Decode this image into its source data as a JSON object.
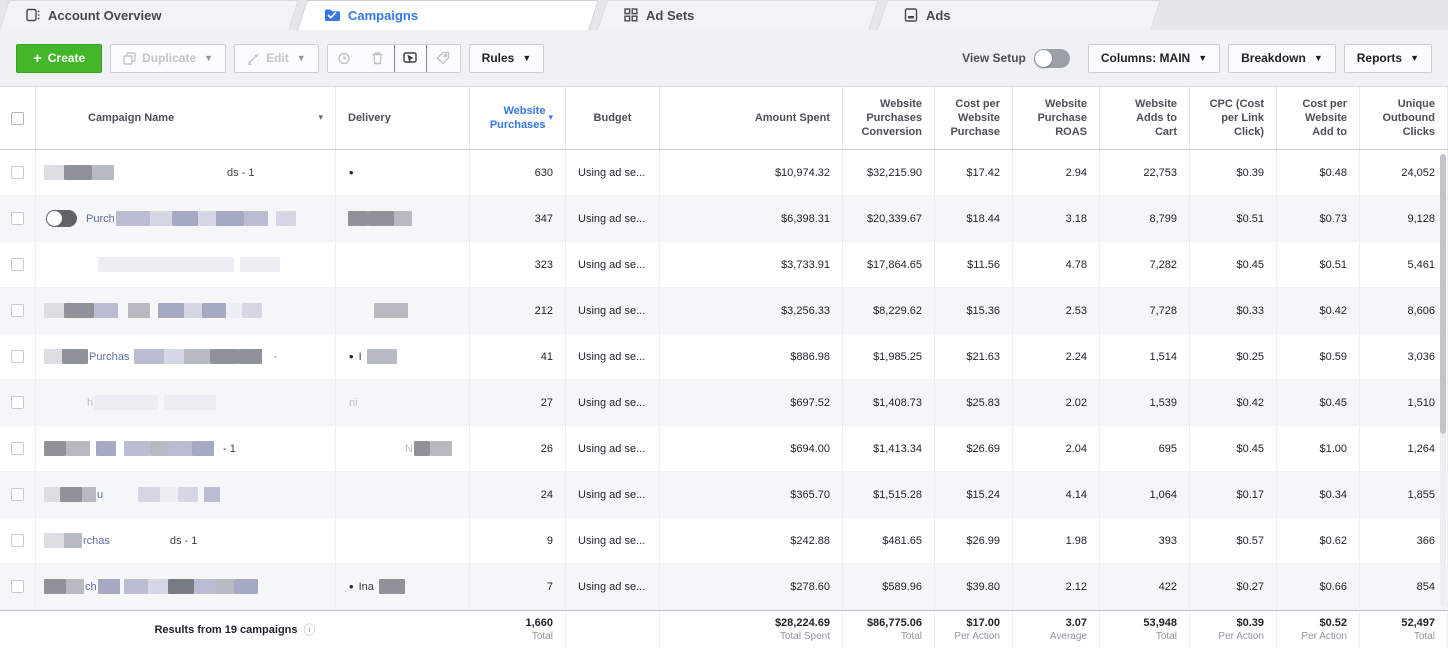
{
  "tabs": [
    {
      "label": "Account Overview",
      "active": false
    },
    {
      "label": "Campaigns",
      "active": true
    },
    {
      "label": "Ad Sets",
      "active": false
    },
    {
      "label": "Ads",
      "active": false
    }
  ],
  "toolbar": {
    "create": "Create",
    "duplicate": "Duplicate",
    "edit": "Edit",
    "rules": "Rules",
    "view_setup": "View Setup",
    "columns": "Columns: MAIN",
    "breakdown": "Breakdown",
    "reports": "Reports"
  },
  "colors": {
    "accent_blue": "#3578e5",
    "create_green": "#42b72a"
  },
  "redact_palette": [
    "#dcdde1",
    "#8f9299",
    "#b7bac0",
    "#b9bcd2",
    "#a5a9c4",
    "#d5d7e4",
    "#edeef3",
    "#777b82"
  ],
  "table": {
    "columns": [
      {
        "key": "name",
        "label": "Campaign Name",
        "align": "left"
      },
      {
        "key": "delivery",
        "label": "Delivery",
        "align": "left"
      },
      {
        "key": "purchases",
        "label": "Website Purchases",
        "align": "right",
        "sorted": true
      },
      {
        "key": "budget",
        "label": "Budget",
        "align": "center"
      },
      {
        "key": "spent",
        "label": "Amount Spent",
        "align": "right"
      },
      {
        "key": "conversion",
        "label": "Website Purchases Conversion",
        "align": "right"
      },
      {
        "key": "cpp",
        "label": "Cost per Website Purchase",
        "align": "right"
      },
      {
        "key": "roas",
        "label": "Website Purchase ROAS",
        "align": "right"
      },
      {
        "key": "atc",
        "label": "Website Adds to Cart",
        "align": "right"
      },
      {
        "key": "cpc",
        "label": "CPC (Cost per Link Click)",
        "align": "right"
      },
      {
        "key": "cpwa",
        "label": "Cost per Website Add to",
        "align": "right"
      },
      {
        "key": "uoc",
        "label": "Unique Outbound Clicks",
        "align": "right"
      }
    ],
    "value_keys": [
      "purchases",
      "budget",
      "spent",
      "conversion",
      "cpp",
      "roas",
      "atc",
      "cpc",
      "cpwa",
      "uoc"
    ],
    "rows": [
      {
        "toggle": false,
        "name": [
          [
            "g",
            2
          ],
          [
            "b",
            20,
            0
          ],
          [
            "b",
            28,
            1
          ],
          [
            "b",
            22,
            2
          ],
          [
            "g",
            112
          ],
          [
            "t",
            "ds - 1",
            "dark"
          ]
        ],
        "delivery": [
          [
            "t",
            "•",
            "dot"
          ]
        ],
        "purchases": "630",
        "budget": "Using ad se...",
        "spent": "$10,974.32",
        "conversion": "$32,215.90",
        "cpp": "$17.42",
        "roas": "2.94",
        "atc": "22,753",
        "cpc": "$0.39",
        "cpwa": "$0.48",
        "uoc": "24,052"
      },
      {
        "toggle": true,
        "name": [
          [
            "t",
            "Purch",
            "blue"
          ],
          [
            "b",
            34,
            3
          ],
          [
            "b",
            22,
            5
          ],
          [
            "b",
            26,
            4
          ],
          [
            "b",
            18,
            5
          ],
          [
            "b",
            28,
            4
          ],
          [
            "b",
            24,
            3
          ],
          [
            "g",
            8
          ],
          [
            "b",
            20,
            5
          ]
        ],
        "delivery": [
          [
            "b",
            20,
            1
          ],
          [
            "b",
            26,
            1
          ],
          [
            "b",
            18,
            2
          ]
        ],
        "purchases": "347",
        "budget": "Using ad se...",
        "spent": "$6,398.31",
        "conversion": "$20,339.67",
        "cpp": "$18.44",
        "roas": "3.18",
        "atc": "8,799",
        "cpc": "$0.51",
        "cpwa": "$0.73",
        "uoc": "9,128"
      },
      {
        "toggle": false,
        "name": [
          [
            "g",
            56
          ],
          [
            "b",
            72,
            6
          ],
          [
            "b",
            64,
            6
          ],
          [
            "g",
            6
          ],
          [
            "b",
            40,
            6
          ]
        ],
        "delivery": [],
        "purchases": "323",
        "budget": "Using ad se...",
        "spent": "$3,733.91",
        "conversion": "$17,864.65",
        "cpp": "$11.56",
        "roas": "4.78",
        "atc": "7,282",
        "cpc": "$0.45",
        "cpwa": "$0.51",
        "uoc": "5,461"
      },
      {
        "toggle": false,
        "name": [
          [
            "g",
            2
          ],
          [
            "b",
            20,
            0
          ],
          [
            "b",
            30,
            1
          ],
          [
            "b",
            24,
            3
          ],
          [
            "g",
            10
          ],
          [
            "b",
            22,
            2
          ],
          [
            "g",
            8
          ],
          [
            "b",
            26,
            4
          ],
          [
            "b",
            18,
            5
          ],
          [
            "b",
            24,
            4
          ],
          [
            "b",
            16,
            6
          ],
          [
            "b",
            20,
            5
          ]
        ],
        "delivery": [
          [
            "g",
            26
          ],
          [
            "b",
            34,
            2
          ]
        ],
        "purchases": "212",
        "budget": "Using ad se...",
        "spent": "$3,256.33",
        "conversion": "$8,229.62",
        "cpp": "$15.36",
        "roas": "2.53",
        "atc": "7,728",
        "cpc": "$0.33",
        "cpwa": "$0.42",
        "uoc": "8,606"
      },
      {
        "toggle": false,
        "name": [
          [
            "g",
            2
          ],
          [
            "b",
            18,
            0
          ],
          [
            "b",
            26,
            1
          ],
          [
            "t",
            "Purchas",
            "blue"
          ],
          [
            "g",
            4
          ],
          [
            "b",
            30,
            3
          ],
          [
            "b",
            20,
            5
          ],
          [
            "b",
            26,
            2
          ],
          [
            "b",
            28,
            1
          ],
          [
            "b",
            24,
            1
          ],
          [
            "g",
            10
          ],
          [
            "t",
            "·",
            "dark"
          ]
        ],
        "delivery": [
          [
            "t",
            "•",
            "dot"
          ],
          [
            "t",
            "I",
            "dark"
          ],
          [
            "g",
            4
          ],
          [
            "b",
            30,
            2
          ]
        ],
        "purchases": "41",
        "budget": "Using ad se...",
        "spent": "$886.98",
        "conversion": "$1,985.25",
        "cpp": "$21.63",
        "roas": "2.24",
        "atc": "1,514",
        "cpc": "$0.25",
        "cpwa": "$0.59",
        "uoc": "3,036"
      },
      {
        "toggle": false,
        "name": [
          [
            "g",
            44
          ],
          [
            "t",
            "h",
            "faint"
          ],
          [
            "b",
            64,
            6
          ],
          [
            "g",
            6
          ],
          [
            "b",
            52,
            6
          ]
        ],
        "delivery": [
          [
            "t",
            "ni",
            "faint"
          ]
        ],
        "purchases": "27",
        "budget": "Using ad se...",
        "spent": "$697.52",
        "conversion": "$1,408.73",
        "cpp": "$25.83",
        "roas": "2.02",
        "atc": "1,539",
        "cpc": "$0.42",
        "cpwa": "$0.45",
        "uoc": "1,510"
      },
      {
        "toggle": false,
        "name": [
          [
            "g",
            2
          ],
          [
            "b",
            22,
            1
          ],
          [
            "b",
            24,
            2
          ],
          [
            "g",
            6
          ],
          [
            "b",
            20,
            4
          ],
          [
            "g",
            8
          ],
          [
            "b",
            26,
            3
          ],
          [
            "b",
            18,
            2
          ],
          [
            "b",
            24,
            3
          ],
          [
            "b",
            22,
            4
          ],
          [
            "g",
            8
          ],
          [
            "t",
            "- 1",
            "dark"
          ]
        ],
        "delivery": [
          [
            "g",
            56
          ],
          [
            "t",
            "N",
            "faint"
          ],
          [
            "b",
            16,
            1
          ],
          [
            "b",
            22,
            2
          ]
        ],
        "purchases": "26",
        "budget": "Using ad se...",
        "spent": "$694.00",
        "conversion": "$1,413.34",
        "cpp": "$26.69",
        "roas": "2.04",
        "atc": "695",
        "cpc": "$0.45",
        "cpwa": "$1.00",
        "uoc": "1,264"
      },
      {
        "toggle": false,
        "name": [
          [
            "g",
            2
          ],
          [
            "b",
            16,
            0
          ],
          [
            "b",
            22,
            1
          ],
          [
            "b",
            14,
            2
          ],
          [
            "t",
            "u",
            "blue"
          ],
          [
            "g",
            34
          ],
          [
            "b",
            22,
            5
          ],
          [
            "b",
            18,
            6
          ],
          [
            "b",
            20,
            5
          ],
          [
            "g",
            6
          ],
          [
            "b",
            16,
            3
          ]
        ],
        "delivery": [],
        "purchases": "24",
        "budget": "Using ad se...",
        "spent": "$365.70",
        "conversion": "$1,515.28",
        "cpp": "$15.24",
        "roas": "4.14",
        "atc": "1,064",
        "cpc": "$0.17",
        "cpwa": "$0.34",
        "uoc": "1,855"
      },
      {
        "toggle": false,
        "name": [
          [
            "g",
            2
          ],
          [
            "b",
            20,
            0
          ],
          [
            "b",
            18,
            2
          ],
          [
            "t",
            "rchas",
            "blue"
          ],
          [
            "g",
            58
          ],
          [
            "t",
            "ds - 1",
            "dark"
          ]
        ],
        "delivery": [],
        "purchases": "9",
        "budget": "Using ad se...",
        "spent": "$242.88",
        "conversion": "$481.65",
        "cpp": "$26.99",
        "roas": "1.98",
        "atc": "393",
        "cpc": "$0.57",
        "cpwa": "$0.62",
        "uoc": "366"
      },
      {
        "toggle": false,
        "name": [
          [
            "g",
            2
          ],
          [
            "b",
            22,
            1
          ],
          [
            "b",
            18,
            2
          ],
          [
            "t",
            "ch",
            "blue"
          ],
          [
            "b",
            22,
            4
          ],
          [
            "g",
            4
          ],
          [
            "b",
            24,
            3
          ],
          [
            "b",
            20,
            5
          ],
          [
            "b",
            26,
            7
          ],
          [
            "b",
            22,
            3
          ],
          [
            "b",
            18,
            2
          ],
          [
            "b",
            24,
            4
          ]
        ],
        "delivery": [
          [
            "t",
            "•",
            "dot"
          ],
          [
            "t",
            "Ina",
            "dark"
          ],
          [
            "g",
            4
          ],
          [
            "b",
            26,
            1
          ]
        ],
        "purchases": "7",
        "budget": "Using ad se...",
        "spent": "$278.60",
        "conversion": "$589.96",
        "cpp": "$39.80",
        "roas": "2.12",
        "atc": "422",
        "cpc": "$0.27",
        "cpwa": "$0.66",
        "uoc": "854"
      }
    ],
    "footer": {
      "results": "Results from 19 campaigns",
      "cells": [
        {
          "v": "1,660",
          "s": "Total"
        },
        {
          "v": "",
          "s": ""
        },
        {
          "v": "$28,224.69",
          "s": "Total Spent"
        },
        {
          "v": "$86,775.06",
          "s": "Total"
        },
        {
          "v": "$17.00",
          "s": "Per Action"
        },
        {
          "v": "3.07",
          "s": "Average"
        },
        {
          "v": "53,948",
          "s": "Total"
        },
        {
          "v": "$0.39",
          "s": "Per Action"
        },
        {
          "v": "$0.52",
          "s": "Per Action"
        },
        {
          "v": "52,497",
          "s": "Total"
        }
      ]
    }
  }
}
